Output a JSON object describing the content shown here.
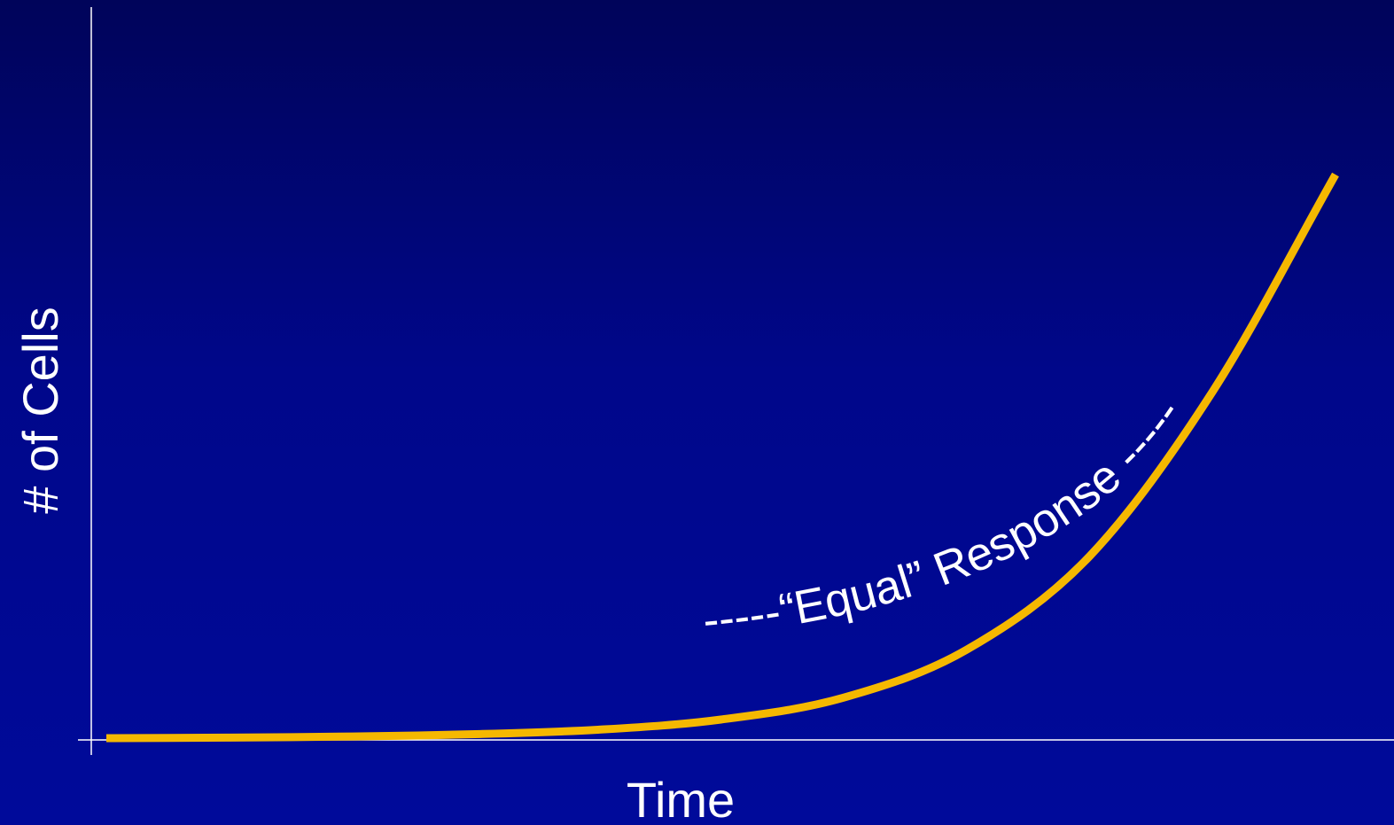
{
  "chart_data": {
    "type": "line",
    "xlabel": "Time",
    "ylabel": "# of Cells",
    "series": [
      {
        "color": "#f5b800",
        "shape": "exponential-growth",
        "values": [
          {
            "x": 0.0,
            "y": 0.0
          },
          {
            "x": 0.1,
            "y": 0.001
          },
          {
            "x": 0.2,
            "y": 0.003
          },
          {
            "x": 0.3,
            "y": 0.007
          },
          {
            "x": 0.4,
            "y": 0.015
          },
          {
            "x": 0.5,
            "y": 0.033
          },
          {
            "x": 0.6,
            "y": 0.072
          },
          {
            "x": 0.7,
            "y": 0.157
          },
          {
            "x": 0.8,
            "y": 0.323
          },
          {
            "x": 0.9,
            "y": 0.615
          },
          {
            "x": 1.0,
            "y": 1.0
          }
        ]
      }
    ],
    "annotations": [
      {
        "text": "-----“Equal” Response -----",
        "color": "#ffffff",
        "style": "curved text following the curve"
      }
    ],
    "grid": false,
    "legend": "none"
  }
}
